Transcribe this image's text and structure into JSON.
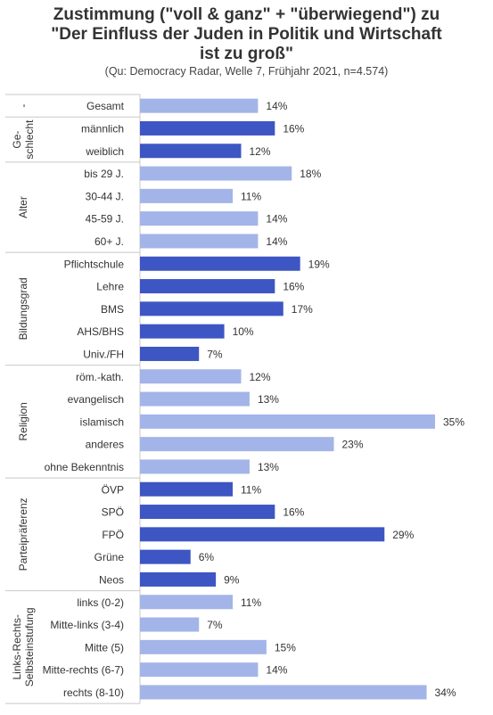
{
  "chart_data": {
    "type": "bar",
    "orientation": "horizontal",
    "title_lines": [
      "Zustimmung (\"voll & ganz\" + \"überwiegend\") zu",
      "\"Der Einfluss der Juden in Politik und Wirtschaft",
      "ist zu groß\""
    ],
    "subtitle": "(Qu: Democracy Radar, Welle 7, Frühjahr 2021, n=4.574)",
    "unit": "%",
    "xlim": [
      0,
      36
    ],
    "colors": {
      "light": "#a3b4e8",
      "dark": "#3d56c3"
    },
    "groups": [
      {
        "label": "-",
        "items": [
          {
            "category": "Gesamt",
            "value": 14,
            "shade": "light"
          }
        ]
      },
      {
        "label": "Ge- schlecht",
        "label_lines": [
          "Ge-",
          "schlecht"
        ],
        "items": [
          {
            "category": "männlich",
            "value": 16,
            "shade": "dark"
          },
          {
            "category": "weiblich",
            "value": 12,
            "shade": "dark"
          }
        ]
      },
      {
        "label": "Alter",
        "items": [
          {
            "category": "bis 29 J.",
            "value": 18,
            "shade": "light"
          },
          {
            "category": "30-44 J.",
            "value": 11,
            "shade": "light"
          },
          {
            "category": "45-59 J.",
            "value": 14,
            "shade": "light"
          },
          {
            "category": "60+ J.",
            "value": 14,
            "shade": "light"
          }
        ]
      },
      {
        "label": "Bildungsgrad",
        "items": [
          {
            "category": "Pflichtschule",
            "value": 19,
            "shade": "dark"
          },
          {
            "category": "Lehre",
            "value": 16,
            "shade": "dark"
          },
          {
            "category": "BMS",
            "value": 17,
            "shade": "dark"
          },
          {
            "category": "AHS/BHS",
            "value": 10,
            "shade": "dark"
          },
          {
            "category": "Univ./FH",
            "value": 7,
            "shade": "dark"
          }
        ]
      },
      {
        "label": "Religion",
        "items": [
          {
            "category": "röm.-kath.",
            "value": 12,
            "shade": "light"
          },
          {
            "category": "evangelisch",
            "value": 13,
            "shade": "light"
          },
          {
            "category": "islamisch",
            "value": 35,
            "shade": "light"
          },
          {
            "category": "anderes",
            "value": 23,
            "shade": "light"
          },
          {
            "category": "ohne Bekenntnis",
            "value": 13,
            "shade": "light"
          }
        ]
      },
      {
        "label": "Parteipräferenz",
        "items": [
          {
            "category": "ÖVP",
            "value": 11,
            "shade": "dark"
          },
          {
            "category": "SPÖ",
            "value": 16,
            "shade": "dark"
          },
          {
            "category": "FPÖ",
            "value": 29,
            "shade": "dark"
          },
          {
            "category": "Grüne",
            "value": 6,
            "shade": "dark"
          },
          {
            "category": "Neos",
            "value": 9,
            "shade": "dark"
          }
        ]
      },
      {
        "label": "Links-Rechts- Selbsteinstufung",
        "label_lines": [
          "Links-Rechts-",
          "Selbsteinstufung"
        ],
        "items": [
          {
            "category": "links (0-2)",
            "value": 11,
            "shade": "light"
          },
          {
            "category": "Mitte-links (3-4)",
            "value": 7,
            "shade": "light"
          },
          {
            "category": "Mitte (5)",
            "value": 15,
            "shade": "light"
          },
          {
            "category": "Mitte-rechts (6-7)",
            "value": 14,
            "shade": "light"
          },
          {
            "category": "rechts (8-10)",
            "value": 34,
            "shade": "light"
          }
        ]
      }
    ]
  }
}
